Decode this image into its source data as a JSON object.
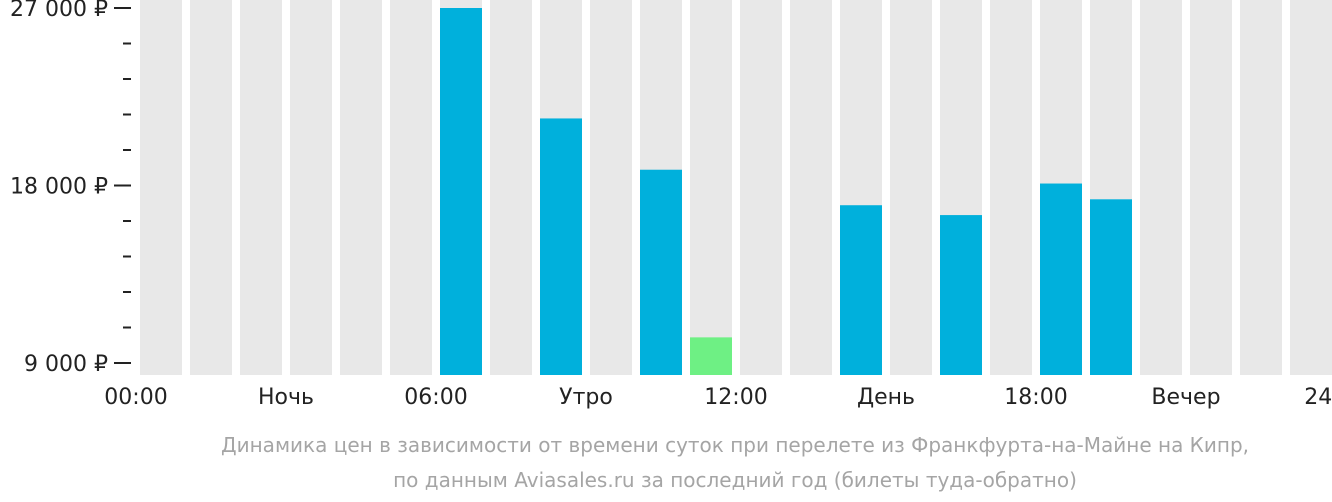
{
  "chart_data": {
    "type": "bar",
    "categories": [
      "00",
      "01",
      "02",
      "03",
      "04",
      "05",
      "06",
      "07",
      "08",
      "09",
      "10",
      "11",
      "12",
      "13",
      "14",
      "15",
      "16",
      "17",
      "18",
      "19",
      "20",
      "21",
      "22",
      "23"
    ],
    "values": [
      null,
      null,
      null,
      null,
      null,
      null,
      27000,
      null,
      21400,
      null,
      18800,
      10300,
      null,
      null,
      17000,
      null,
      16500,
      null,
      18100,
      17300,
      null,
      null,
      null,
      null
    ],
    "highlight_index": 11,
    "ylim": [
      9000,
      27000
    ],
    "y_tick_labels": [
      {
        "value": 27000,
        "label": "27 000 ₽"
      },
      {
        "value": 18000,
        "label": "18 000 ₽"
      },
      {
        "value": 9000,
        "label": "9 000 ₽"
      }
    ],
    "y_minor_tick_step": 1800,
    "x_labels": [
      {
        "at": 0,
        "label": "00:00"
      },
      {
        "at": 3,
        "label": "Ночь"
      },
      {
        "at": 6,
        "label": "06:00"
      },
      {
        "at": 9,
        "label": "Утро"
      },
      {
        "at": 12,
        "label": "12:00"
      },
      {
        "at": 15,
        "label": "День"
      },
      {
        "at": 18,
        "label": "18:00"
      },
      {
        "at": 21,
        "label": "Вечер"
      },
      {
        "at": 24,
        "label": "24:00"
      }
    ],
    "caption_lines": [
      "Динамика цен в зависимости от времени суток при перелете из Франкфурта-на-Майне на Кипр,",
      "по данным Aviasales.ru за последний год (билеты туда-обратно)"
    ],
    "colors": {
      "bar": "#00b0dc",
      "highlight": "#6ef084",
      "background_column": "#e8e8e8",
      "axis": "#222222",
      "caption": "#a5a5a5"
    }
  }
}
